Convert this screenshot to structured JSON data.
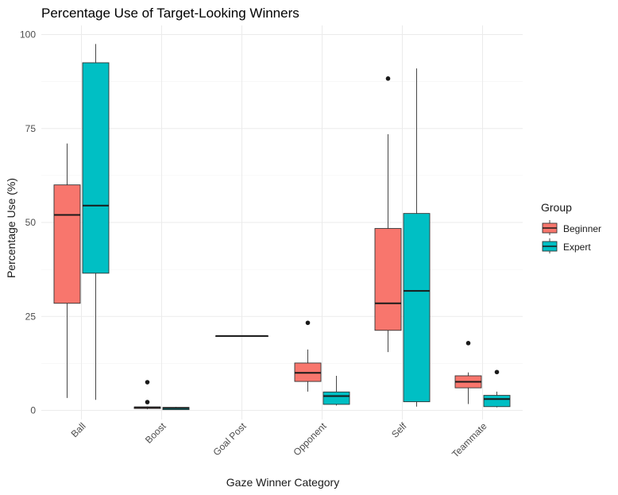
{
  "chart_data": {
    "type": "boxplot",
    "title": "Percentage Use of Target-Looking Winners",
    "xlabel": "Gaze Winner Category",
    "ylabel": "Percentage Use (%)",
    "ylim": [
      0,
      100
    ],
    "yticks": [
      0,
      25,
      50,
      75,
      100
    ],
    "grid": true,
    "legend": {
      "title": "Group",
      "placement": "right"
    },
    "categories": [
      "Ball",
      "Boost",
      "Goal Post",
      "Opponent",
      "Self",
      "Teammate"
    ],
    "series": [
      {
        "name": "Beginner",
        "color": "#F8766D",
        "boxes": [
          {
            "category": "Ball",
            "min": 3.3,
            "q1": 28.5,
            "median": 52.0,
            "q3": 60.0,
            "max": 71.0,
            "outliers": []
          },
          {
            "category": "Boost",
            "min": 0.3,
            "q1": 0.5,
            "median": 0.8,
            "q3": 0.9,
            "max": 1.0,
            "outliers": [
              2.2,
              7.5
            ]
          },
          {
            "category": "Opponent",
            "min": 5.0,
            "q1": 7.7,
            "median": 10.0,
            "q3": 12.6,
            "max": 16.2,
            "outliers": [
              23.3
            ]
          },
          {
            "category": "Self",
            "min": 15.5,
            "q1": 21.3,
            "median": 28.5,
            "q3": 48.4,
            "max": 73.5,
            "outliers": [
              88.3
            ]
          },
          {
            "category": "Teammate",
            "min": 1.7,
            "q1": 6.0,
            "median": 7.6,
            "q3": 9.2,
            "max": 10.1,
            "outliers": [
              17.9
            ]
          }
        ]
      },
      {
        "name": "Expert",
        "color": "#00BFC4",
        "boxes": [
          {
            "category": "Ball",
            "min": 2.8,
            "q1": 36.5,
            "median": 54.5,
            "q3": 92.5,
            "max": 97.5,
            "outliers": []
          },
          {
            "category": "Boost",
            "min": 0.1,
            "q1": 0.2,
            "median": 0.6,
            "q3": 0.8,
            "max": 0.9,
            "outliers": []
          },
          {
            "category": "Goal Post",
            "min": 19.8,
            "q1": 19.8,
            "median": 19.8,
            "q3": 19.8,
            "max": 19.8,
            "outliers": []
          },
          {
            "category": "Opponent",
            "min": 1.3,
            "q1": 1.6,
            "median": 3.8,
            "q3": 4.9,
            "max": 9.2,
            "outliers": []
          },
          {
            "category": "Self",
            "min": 1.0,
            "q1": 2.3,
            "median": 31.8,
            "q3": 52.4,
            "max": 91.0,
            "outliers": []
          },
          {
            "category": "Teammate",
            "min": 0.8,
            "q1": 1.0,
            "median": 3.0,
            "q3": 4.0,
            "max": 5.0,
            "outliers": [
              10.2
            ]
          }
        ]
      }
    ]
  }
}
